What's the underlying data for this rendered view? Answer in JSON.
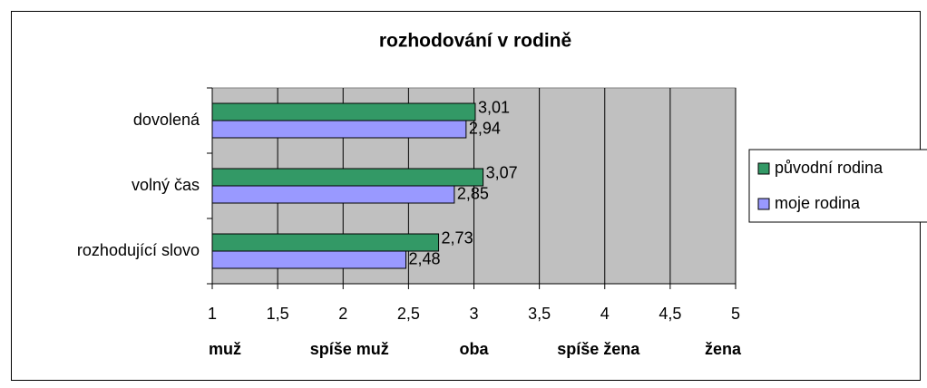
{
  "chart_data": {
    "type": "hbar",
    "title": "rozhodování v rodině",
    "categories": [
      "dovolená",
      "volný čas",
      "rozhodující slovo"
    ],
    "series": [
      {
        "name": "původní rodina",
        "color": "#339966",
        "values": [
          3.01,
          3.07,
          2.73
        ],
        "value_labels": [
          "3,01",
          "3,07",
          "2,73"
        ]
      },
      {
        "name": "moje rodina",
        "color": "#9999ff",
        "values": [
          2.94,
          2.85,
          2.48
        ],
        "value_labels": [
          "2,94",
          "2,85",
          "2,48"
        ]
      }
    ],
    "xlim": [
      1,
      5
    ],
    "xticks": [
      1,
      {
        "value": 1.5,
        "label": "1,5"
      },
      2,
      {
        "value": 2.5,
        "label": "2,5"
      },
      3,
      {
        "value": 3.5,
        "label": "3,5"
      },
      4,
      {
        "value": 4.5,
        "label": "4,5"
      },
      5
    ],
    "x_axis_labels": [
      "muž",
      "spíše muž",
      "oba",
      "spíše žena",
      "žena"
    ],
    "grid": true,
    "legend": "right"
  }
}
